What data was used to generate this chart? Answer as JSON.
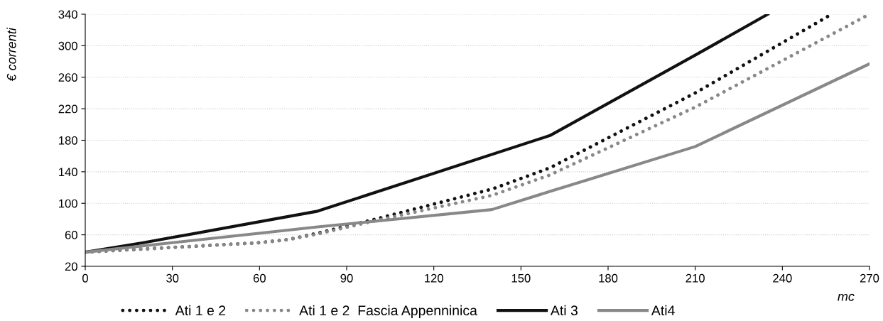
{
  "chart_data": {
    "type": "line",
    "xlabel": "mc",
    "ylabel": "€ correnti",
    "xlim": [
      0,
      270
    ],
    "xticks": [
      0,
      30,
      60,
      90,
      120,
      150,
      180,
      210,
      240,
      270
    ],
    "ylim": [
      20,
      340
    ],
    "yticks": [
      20,
      60,
      100,
      140,
      180,
      220,
      260,
      300,
      340
    ],
    "grid": "y",
    "legend": "bottom",
    "series": [
      {
        "name": "Ati 1 e 2",
        "color": "#111111",
        "line_style": "dotted",
        "x": [
          0,
          20,
          40,
          60,
          70,
          80,
          100,
          140,
          160,
          210,
          257
        ],
        "values": [
          38,
          42,
          46,
          50,
          54,
          62,
          80,
          118,
          145,
          240,
          340
        ]
      },
      {
        "name": "Ati 1 e 2  Fascia Appenninica",
        "color": "#888888",
        "line_style": "dotted",
        "x": [
          0,
          20,
          40,
          60,
          70,
          80,
          100,
          140,
          160,
          210,
          270
        ],
        "values": [
          38,
          42,
          46,
          50,
          54,
          61,
          78,
          110,
          136,
          222,
          340
        ]
      },
      {
        "name": "Ati 3",
        "color": "#111111",
        "line_style": "solid",
        "x": [
          0,
          20,
          80,
          160,
          210,
          235
        ],
        "values": [
          38,
          50,
          90,
          186,
          288,
          340
        ]
      },
      {
        "name": "Ati4",
        "color": "#888888",
        "line_style": "solid",
        "x": [
          0,
          80,
          140,
          160,
          210,
          270
        ],
        "values": [
          38,
          70,
          92,
          115,
          172,
          277
        ]
      }
    ]
  }
}
